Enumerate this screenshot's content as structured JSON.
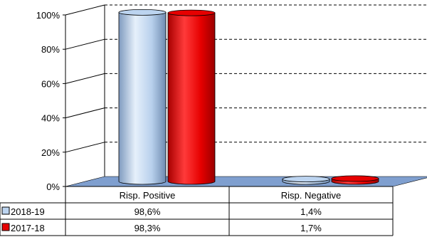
{
  "chart_data": {
    "type": "bar",
    "categories": [
      "Risp. Positive",
      "Risp. Negative"
    ],
    "series": [
      {
        "name": "2018-19",
        "values": [
          98.6,
          1.4
        ],
        "labels": [
          "98,6%",
          "1,4%"
        ],
        "color": "#bcd4f0"
      },
      {
        "name": "2017-18",
        "values": [
          98.3,
          1.7
        ],
        "labels": [
          "98,3%",
          "1,7%"
        ],
        "color": "#e60000"
      }
    ],
    "y_ticks": [
      {
        "value": 0,
        "label": "0%"
      },
      {
        "value": 20,
        "label": "20%"
      },
      {
        "value": 40,
        "label": "40%"
      },
      {
        "value": 60,
        "label": "60%"
      },
      {
        "value": 80,
        "label": "80%"
      },
      {
        "value": 100,
        "label": "100%"
      }
    ],
    "ylim": [
      0,
      100
    ],
    "grid": "dashed",
    "legend": "data-table",
    "floor_color": "#7f9fcf",
    "style": "3d-cylinder"
  }
}
